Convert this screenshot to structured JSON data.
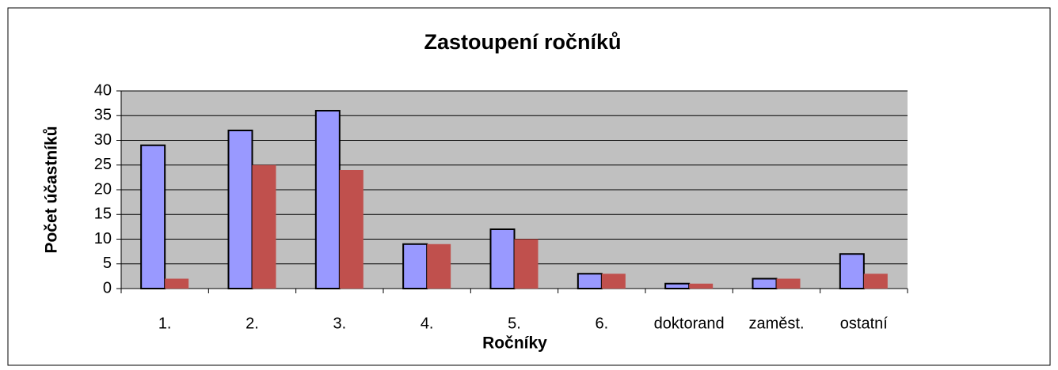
{
  "chart_data": {
    "type": "bar",
    "title": "Zastoupení ročníků",
    "x_label": "Ročníky",
    "y_label": "Počet účastníků",
    "categories": [
      "1.",
      "2.",
      "3.",
      "4.",
      "5.",
      "6.",
      "doktorand",
      "zaměst.",
      "ostatní"
    ],
    "series": [
      {
        "color": "#9999ff",
        "values": [
          29,
          32,
          36,
          9,
          12,
          3,
          1,
          2,
          7
        ]
      },
      {
        "color": "#c0504d",
        "values": [
          2,
          25,
          24,
          9,
          10,
          3,
          1,
          2,
          3
        ]
      }
    ],
    "ylim": [
      0,
      40
    ],
    "yticks": [
      0,
      5,
      10,
      15,
      20,
      25,
      30,
      35,
      40
    ],
    "grid": true
  }
}
